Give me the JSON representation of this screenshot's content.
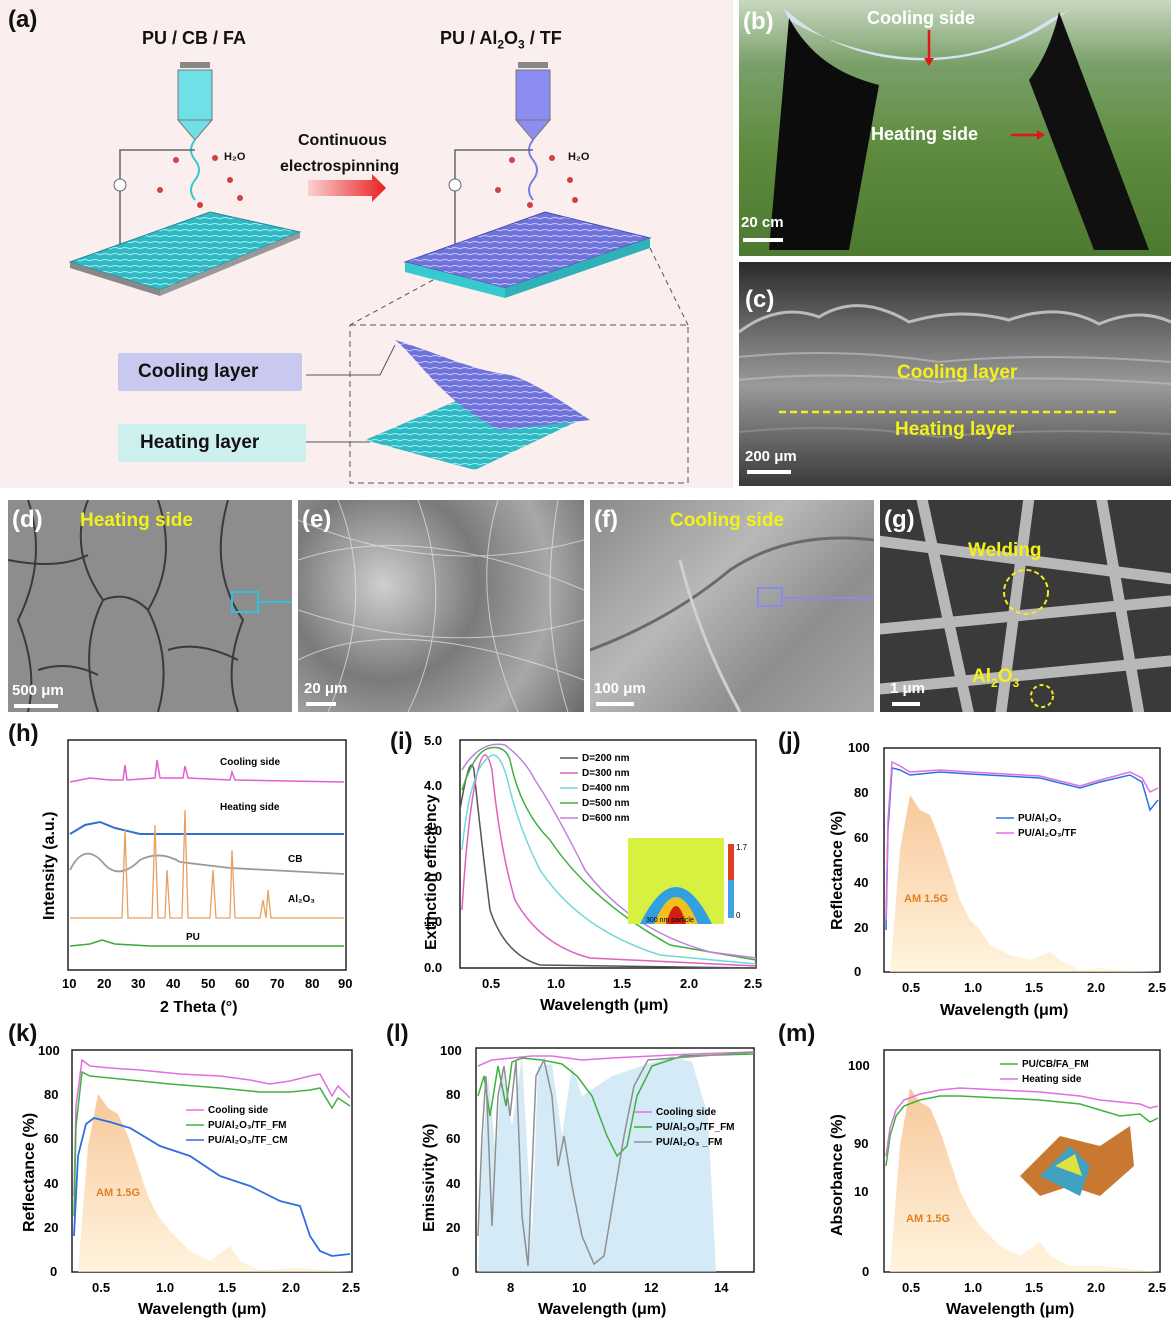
{
  "panel_a": {
    "label": "(a)",
    "left_title": "PU / CB / FA",
    "right_title_pre": "PU / Al",
    "right_title_sub1": "2",
    "right_title_mid": "O",
    "right_title_sub2": "3",
    "right_title_post": " / TF",
    "arrow_text_1": "Continuous",
    "arrow_text_2": "electrospinning",
    "water_left": "H₂O",
    "water_right": "H₂O",
    "cooling_layer": "Cooling layer",
    "heating_layer": "Heating layer",
    "colors": {
      "heating": "#38c9cf",
      "cooling": "#7c7fe0",
      "bg": "#fbeeee"
    }
  },
  "panel_b": {
    "label": "(b)",
    "cooling_side": "Cooling side",
    "heating_side": "Heating side",
    "scale": "20 cm"
  },
  "panel_c": {
    "label": "(c)",
    "cooling_layer": "Cooling layer",
    "heating_layer": "Heating layer",
    "scale": "200 μm"
  },
  "panel_d": {
    "label": "(d)",
    "title": "Heating side",
    "scale": "500 μm"
  },
  "panel_e": {
    "label": "(e)",
    "scale": "20 μm"
  },
  "panel_f": {
    "label": "(f)",
    "title": "Cooling side",
    "scale": "100 μm"
  },
  "panel_g": {
    "label": "(g)",
    "welding": "Welding",
    "al2o3_pre": "Al",
    "al2o3_sub1": "2",
    "al2o3_mid": "O",
    "al2o3_sub2": "3",
    "scale": "1 μm"
  },
  "chart_data": [
    {
      "panel": "(h)",
      "type": "line",
      "xlabel": "2 Theta (°)",
      "ylabel": "Intensity (a.u.)",
      "xlim": [
        10,
        90
      ],
      "xticks": [
        "10",
        "20",
        "30",
        "40",
        "50",
        "60",
        "70",
        "80",
        "90"
      ],
      "series": [
        {
          "name": "Cooling side",
          "color": "#e060d0"
        },
        {
          "name": "Heating side",
          "color": "#2f6fd0"
        },
        {
          "name": "CB",
          "color": "#9a9a9a"
        },
        {
          "name": "Al₂O₃",
          "color": "#e8a060"
        },
        {
          "name": "PU",
          "color": "#3aa83a"
        }
      ]
    },
    {
      "panel": "(i)",
      "type": "line",
      "xlabel": "Wavelength (μm)",
      "ylabel": "Extinction efficiency",
      "xlim": [
        0.25,
        2.5
      ],
      "ylim": [
        0,
        5.0
      ],
      "xticks": [
        "0.5",
        "1.0",
        "1.5",
        "2.0",
        "2.5"
      ],
      "yticks": [
        "0.0",
        "1.0",
        "2.0",
        "3.0",
        "4.0",
        "5.0"
      ],
      "series": [
        {
          "name": "D=200 nm",
          "color": "#555555",
          "peak_x": 0.27,
          "peak_y": 4.8
        },
        {
          "name": "D=300 nm",
          "color": "#e060c0",
          "peak_x": 0.38,
          "peak_y": 4.8
        },
        {
          "name": "D=400 nm",
          "color": "#70d8d8",
          "peak_x": 0.45,
          "peak_y": 4.6
        },
        {
          "name": "D=500 nm",
          "color": "#40b040",
          "peak_x": 0.5,
          "peak_y": 4.8
        },
        {
          "name": "D=600 nm",
          "color": "#c080e0",
          "peak_x": 0.6,
          "peak_y": 4.8
        }
      ],
      "inset_text": "300 nm particle",
      "inset_max": "1.7",
      "inset_min": "0"
    },
    {
      "panel": "(j)",
      "type": "line",
      "xlabel": "Wavelength (μm)",
      "ylabel": "Reflectance (%)",
      "xlim": [
        0.25,
        2.5
      ],
      "ylim": [
        0,
        100
      ],
      "xticks": [
        "0.5",
        "1.0",
        "1.5",
        "2.0",
        "2.5"
      ],
      "yticks": [
        "0",
        "20",
        "40",
        "60",
        "80",
        "100"
      ],
      "series": [
        {
          "name": "PU/Al₂O₃",
          "color": "#3070e0"
        },
        {
          "name": "PU/Al₂O₃/TF",
          "color": "#e070e0"
        }
      ],
      "annotation": "AM 1.5G"
    },
    {
      "panel": "(k)",
      "type": "line",
      "xlabel": "Wavelength (μm)",
      "ylabel": "Reflectance (%)",
      "xlim": [
        0.25,
        2.5
      ],
      "ylim": [
        0,
        100
      ],
      "xticks": [
        "0.5",
        "1.0",
        "1.5",
        "2.0",
        "2.5"
      ],
      "yticks": [
        "0",
        "20",
        "40",
        "60",
        "80",
        "100"
      ],
      "series": [
        {
          "name": "Cooling side",
          "color": "#e070e0"
        },
        {
          "name": "PU/Al₂O₃/TF_FM",
          "color": "#40b040"
        },
        {
          "name": "PU/Al₂O₃/TF_CM",
          "color": "#2f6fe0"
        }
      ],
      "annotation": "AM 1.5G"
    },
    {
      "panel": "(l)",
      "type": "line",
      "xlabel": "Wavelength (μm)",
      "ylabel": "Emissivity  (%)",
      "xlim": [
        7,
        15
      ],
      "ylim": [
        0,
        100
      ],
      "xticks": [
        "8",
        "10",
        "12",
        "14"
      ],
      "yticks": [
        "0",
        "20",
        "40",
        "60",
        "80",
        "100"
      ],
      "series": [
        {
          "name": "Cooling side",
          "color": "#e070e0"
        },
        {
          "name": "PU/Al₂O₃/TF_FM",
          "color": "#40b040"
        },
        {
          "name": "PU/Al₂O₃ _FM",
          "color": "#909090"
        }
      ]
    },
    {
      "panel": "(m)",
      "type": "line",
      "xlabel": "Wavelength (μm)",
      "ylabel": "Absorbance  (%)",
      "xlim": [
        0.25,
        2.5
      ],
      "xticks": [
        "0.5",
        "1.0",
        "1.5",
        "2.0",
        "2.5"
      ],
      "yticks": [
        "0",
        "10",
        "90",
        "100"
      ],
      "series": [
        {
          "name": "PU/CB/FA_FM",
          "color": "#40b040"
        },
        {
          "name": "Heating side",
          "color": "#e070e0"
        }
      ],
      "annotation": "AM 1.5G"
    }
  ]
}
